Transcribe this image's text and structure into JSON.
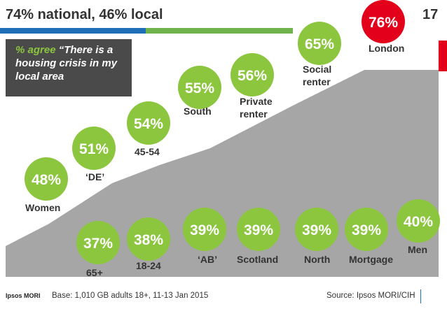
{
  "slide": {
    "title": "74% national, 46% local",
    "number": "17",
    "question_label": "% agree",
    "question_text": "“There is a housing crisis in my local area",
    "base": "Base: 1,010 GB adults 18+, 11-13 Jan 2015",
    "source": "Source: Ipsos MORI/CIH",
    "logo": "Ipsos MORI"
  },
  "colors": {
    "green": "#8cc63f",
    "red": "#e3001b",
    "grey": "#a6a6a6",
    "dark_box": "#4a4a4a",
    "blue_bar": "#1f6fb8",
    "green_bar": "#70b24b"
  },
  "chart_data": {
    "type": "bubble",
    "title": "74% national, 46% local",
    "unit": "%",
    "groups": [
      {
        "name": "above",
        "points": [
          {
            "label": "Women",
            "value": 48
          },
          {
            "label": "‘DE’",
            "value": 51
          },
          {
            "label": "45-54",
            "value": 54
          },
          {
            "label": "South",
            "value": 55
          },
          {
            "label": "Private renter",
            "value": 56
          },
          {
            "label": "Social renter",
            "value": 65
          },
          {
            "label": "London",
            "value": 76,
            "highlight": true
          }
        ]
      },
      {
        "name": "below",
        "points": [
          {
            "label": "65+",
            "value": 37
          },
          {
            "label": "18-24",
            "value": 38
          },
          {
            "label": "‘AB’",
            "value": 39
          },
          {
            "label": "Scotland",
            "value": 39
          },
          {
            "label": "North",
            "value": 39
          },
          {
            "label": "Mortgage",
            "value": 39
          },
          {
            "label": "Men",
            "value": 40
          }
        ]
      }
    ]
  }
}
